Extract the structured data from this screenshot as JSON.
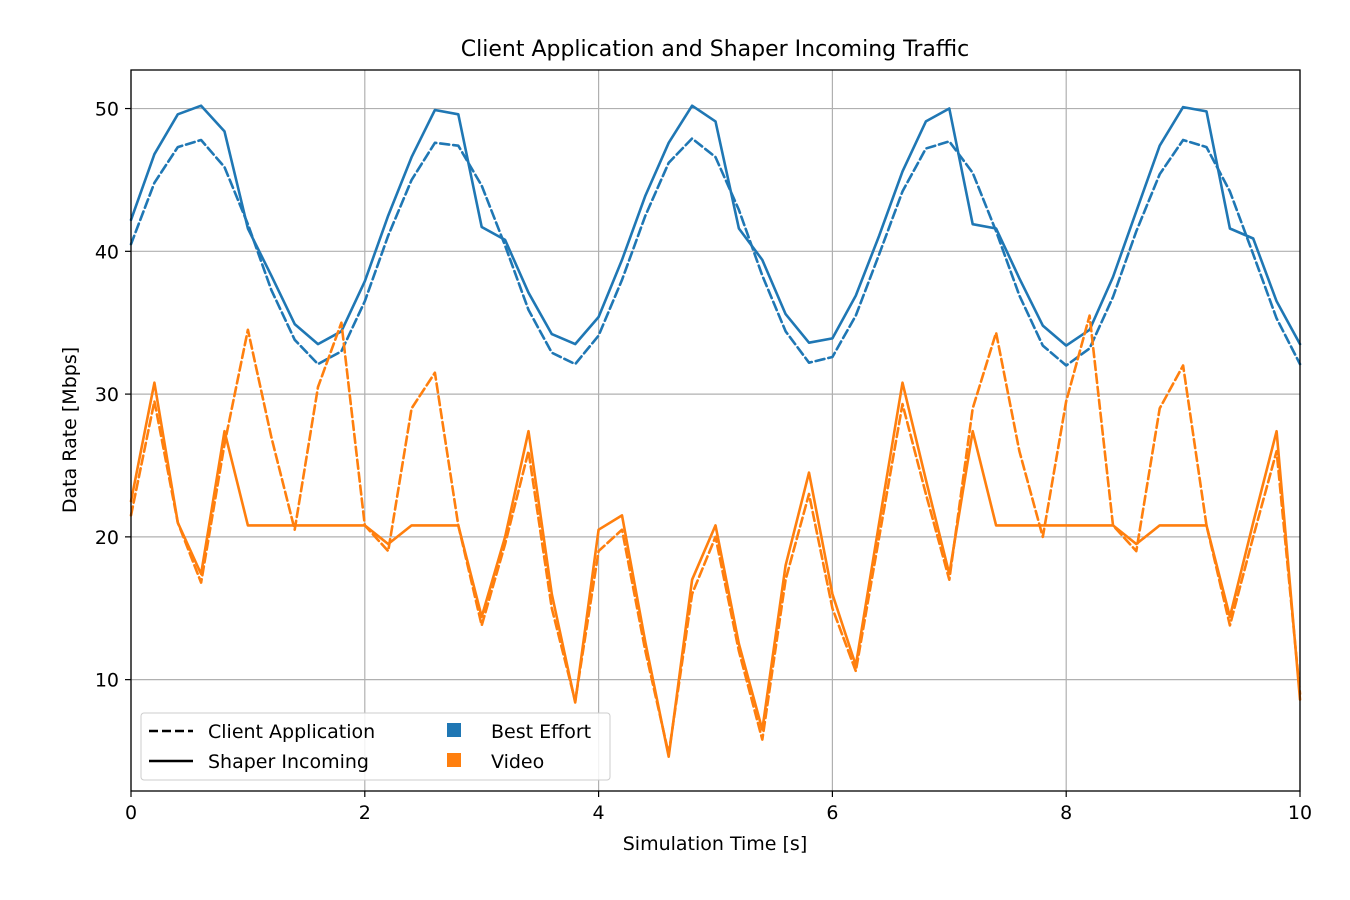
{
  "chart_data": {
    "type": "line",
    "title": "Client Application and Shaper Incoming Traffic",
    "xlabel": "Simulation Time [s]",
    "ylabel": "Data Rate [Mbps]",
    "xlim": [
      0,
      10
    ],
    "ylim": [
      2.2,
      52.7
    ],
    "xticks": [
      0,
      2,
      4,
      6,
      8,
      10
    ],
    "yticks": [
      10,
      20,
      30,
      40,
      50
    ],
    "grid": true,
    "legend_position": "lower-left",
    "legend": {
      "styles": [
        {
          "label": "Client Application",
          "dash": "dashed"
        },
        {
          "label": "Shaper Incoming",
          "dash": "solid"
        }
      ],
      "colors": [
        {
          "label": "Best Effort",
          "color": "#1f77b4"
        },
        {
          "label": "Video",
          "color": "#ff7f0e"
        }
      ]
    },
    "x": [
      0,
      0.2,
      0.4,
      0.6,
      0.8,
      1.0,
      1.2,
      1.4,
      1.6,
      1.8,
      2.0,
      2.2,
      2.4,
      2.6,
      2.8,
      3.0,
      3.2,
      3.4,
      3.6,
      3.8,
      4.0,
      4.2,
      4.4,
      4.6,
      4.8,
      5.0,
      5.2,
      5.4,
      5.6,
      5.8,
      6.0,
      6.2,
      6.4,
      6.6,
      6.8,
      7.0,
      7.2,
      7.4,
      7.6,
      7.8,
      8.0,
      8.2,
      8.4,
      8.6,
      8.8,
      9.0,
      9.2,
      9.4,
      9.6,
      9.8,
      10.0
    ],
    "series": [
      {
        "name": "Best Effort",
        "group": "Client Application",
        "color": "#1f77b4",
        "dash": "dashed",
        "values": [
          40.5,
          44.8,
          47.3,
          47.8,
          45.9,
          41.9,
          37.3,
          33.8,
          32.1,
          33.0,
          36.5,
          41.1,
          45.0,
          47.6,
          47.4,
          44.6,
          40.4,
          35.9,
          32.9,
          32.1,
          34.1,
          38.0,
          42.5,
          46.2,
          47.9,
          46.6,
          42.9,
          38.3,
          34.4,
          32.2,
          32.6,
          35.5,
          39.8,
          44.2,
          47.2,
          47.7,
          45.5,
          41.4,
          36.9,
          33.4,
          32.0,
          33.2,
          36.8,
          41.4,
          45.4,
          47.8,
          47.3,
          44.2,
          39.8,
          35.3,
          32.1
        ]
      },
      {
        "name": "Best Effort",
        "group": "Shaper Incoming",
        "color": "#1f77b4",
        "dash": "solid",
        "values": [
          42.2,
          46.8,
          49.6,
          50.2,
          48.4,
          41.6,
          38.3,
          34.9,
          33.5,
          34.4,
          37.9,
          42.5,
          46.6,
          49.9,
          49.6,
          41.7,
          40.8,
          37.1,
          34.2,
          33.5,
          35.4,
          39.4,
          43.9,
          47.6,
          50.2,
          49.1,
          41.6,
          39.4,
          35.6,
          33.6,
          33.9,
          36.9,
          41.1,
          45.6,
          49.1,
          50.0,
          41.9,
          41.6,
          38.1,
          34.8,
          33.4,
          34.5,
          38.2,
          42.8,
          47.4,
          50.1,
          49.8,
          41.6,
          40.9,
          36.5,
          33.5
        ]
      },
      {
        "name": "Video",
        "group": "Client Application",
        "color": "#ff7f0e",
        "dash": "dashed",
        "values": [
          21.5,
          29.5,
          21.0,
          16.8,
          26.5,
          34.5,
          27.0,
          20.5,
          30.5,
          35.0,
          20.8,
          19.0,
          29.0,
          31.5,
          20.8,
          13.8,
          19.5,
          26.0,
          15.0,
          8.5,
          19.0,
          20.5,
          12.0,
          4.8,
          16.0,
          20.0,
          12.0,
          5.8,
          17.0,
          23.0,
          15.0,
          10.6,
          20.0,
          29.3,
          23.0,
          17.0,
          29.0,
          34.3,
          26.0,
          20.0,
          29.5,
          35.5,
          20.8,
          19.0,
          29.0,
          32.0,
          20.8,
          13.8,
          20.0,
          26.0,
          9.0
        ]
      },
      {
        "name": "Video",
        "group": "Shaper Incoming",
        "color": "#ff7f0e",
        "dash": "solid",
        "values": [
          22.5,
          30.8,
          21.0,
          17.4,
          27.4,
          20.8,
          20.8,
          20.8,
          20.8,
          20.8,
          20.8,
          19.5,
          20.8,
          20.8,
          20.8,
          14.4,
          20.0,
          27.4,
          16.0,
          8.4,
          20.5,
          21.5,
          12.6,
          4.6,
          17.0,
          20.8,
          12.5,
          6.5,
          18.0,
          24.5,
          16.0,
          11.0,
          21.0,
          30.8,
          24.0,
          17.4,
          27.4,
          20.8,
          20.8,
          20.8,
          20.8,
          20.8,
          20.8,
          19.5,
          20.8,
          20.8,
          20.8,
          14.4,
          21.0,
          27.4,
          8.6
        ]
      }
    ]
  }
}
